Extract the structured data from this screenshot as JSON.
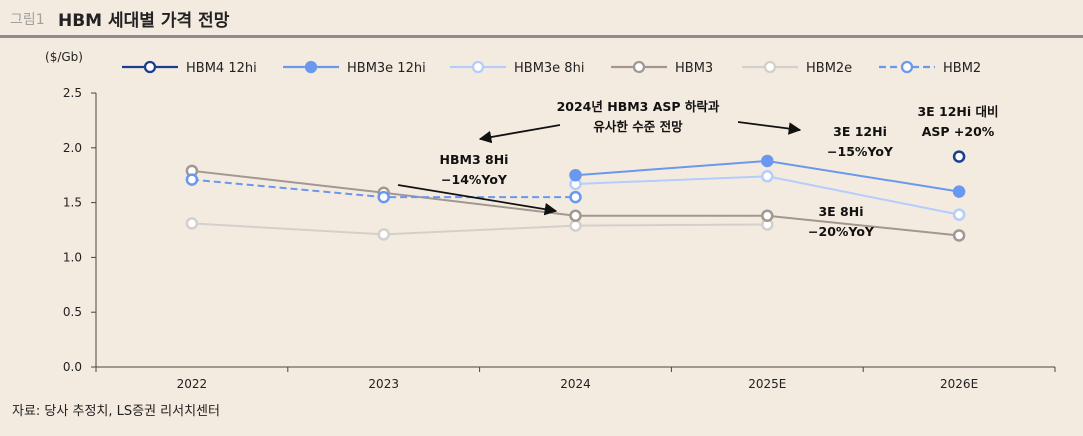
{
  "header": {
    "prefix": "그림1",
    "title": "HBM 세대별 가격 전망"
  },
  "footer": {
    "source": "자료: 당사 추정치, LS증권 리서치센터"
  },
  "chart_data": {
    "type": "line",
    "unit_label": "($/Gb)",
    "categories": [
      "2022",
      "2023",
      "2024",
      "2025E",
      "2026E"
    ],
    "ylim": [
      0,
      2.5
    ],
    "yticks": [
      "0.0",
      "0.5",
      "1.0",
      "1.5",
      "2.0",
      "2.5"
    ],
    "grid": false,
    "legend_position": "top",
    "series": [
      {
        "name": "HBM4 12hi",
        "color": "#1a3f8f",
        "style": "hollow-solid",
        "values": [
          null,
          null,
          null,
          null,
          1.92
        ]
      },
      {
        "name": "HBM3e 12hi",
        "color": "#6a98ee",
        "style": "filled",
        "values": [
          null,
          null,
          1.75,
          1.88,
          1.6
        ]
      },
      {
        "name": "HBM3e 8hi",
        "color": "#b4cdfa",
        "style": "hollow-solid",
        "values": [
          null,
          null,
          1.67,
          1.74,
          1.39
        ]
      },
      {
        "name": "HBM3",
        "color": "#a09891",
        "style": "hollow-solid",
        "values": [
          1.79,
          1.59,
          1.38,
          1.38,
          1.2
        ]
      },
      {
        "name": "HBM2e",
        "color": "#d3d0cc",
        "style": "hollow-solid",
        "values": [
          1.31,
          1.21,
          1.29,
          1.3,
          null
        ]
      },
      {
        "name": "HBM2",
        "color": "#6a98ee",
        "style": "dashed",
        "values": [
          1.71,
          1.55,
          1.55,
          null,
          null
        ]
      }
    ],
    "annotations": [
      {
        "lines": [
          "2024년 HBM3 ASP 하락과",
          "유사한 수준 전망"
        ]
      },
      {
        "lines": [
          "HBM3 8Hi",
          "−14%YoY"
        ]
      },
      {
        "lines": [
          "3E 12Hi",
          "−15%YoY"
        ]
      },
      {
        "lines": [
          "3E 8Hi",
          "−20%YoY"
        ]
      },
      {
        "lines": [
          "3E 12Hi 대비",
          "ASP +20%"
        ]
      }
    ]
  }
}
